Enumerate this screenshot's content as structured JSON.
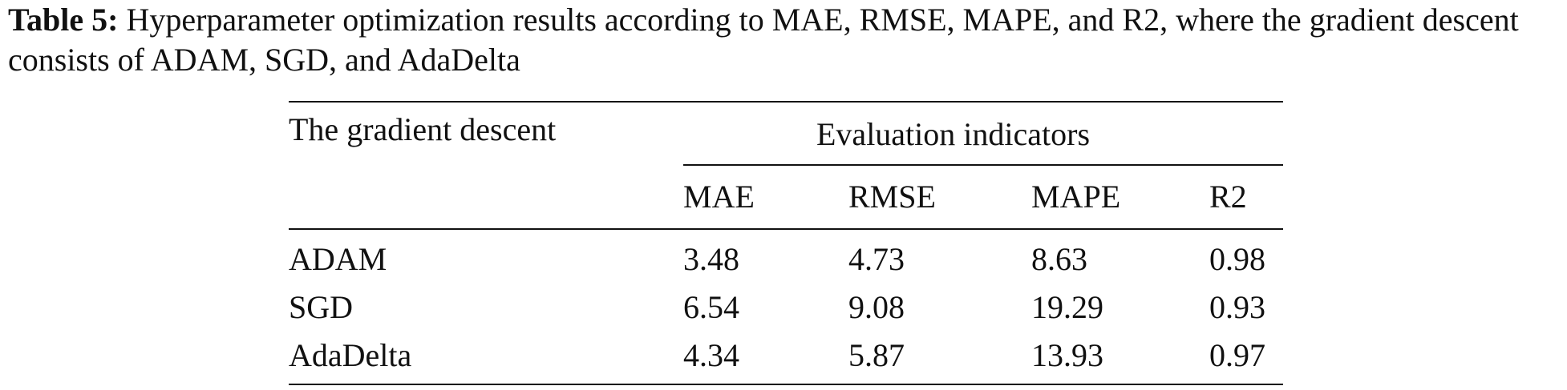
{
  "caption": {
    "label": "Table 5:",
    "text": "Hyperparameter optimization results according to MAE, RMSE, MAPE, and R2, where the gradient descent consists of ADAM, SGD, and AdaDelta"
  },
  "table": {
    "row_header": "The gradient descent",
    "group_header": "Evaluation indicators",
    "columns": [
      "MAE",
      "RMSE",
      "MAPE",
      "R2"
    ],
    "rows": [
      {
        "name": "ADAM",
        "values": [
          "3.48",
          "4.73",
          "8.63",
          "0.98"
        ]
      },
      {
        "name": "SGD",
        "values": [
          "6.54",
          "9.08",
          "19.29",
          "0.93"
        ]
      },
      {
        "name": "AdaDelta",
        "values": [
          "4.34",
          "5.87",
          "13.93",
          "0.97"
        ]
      }
    ]
  }
}
